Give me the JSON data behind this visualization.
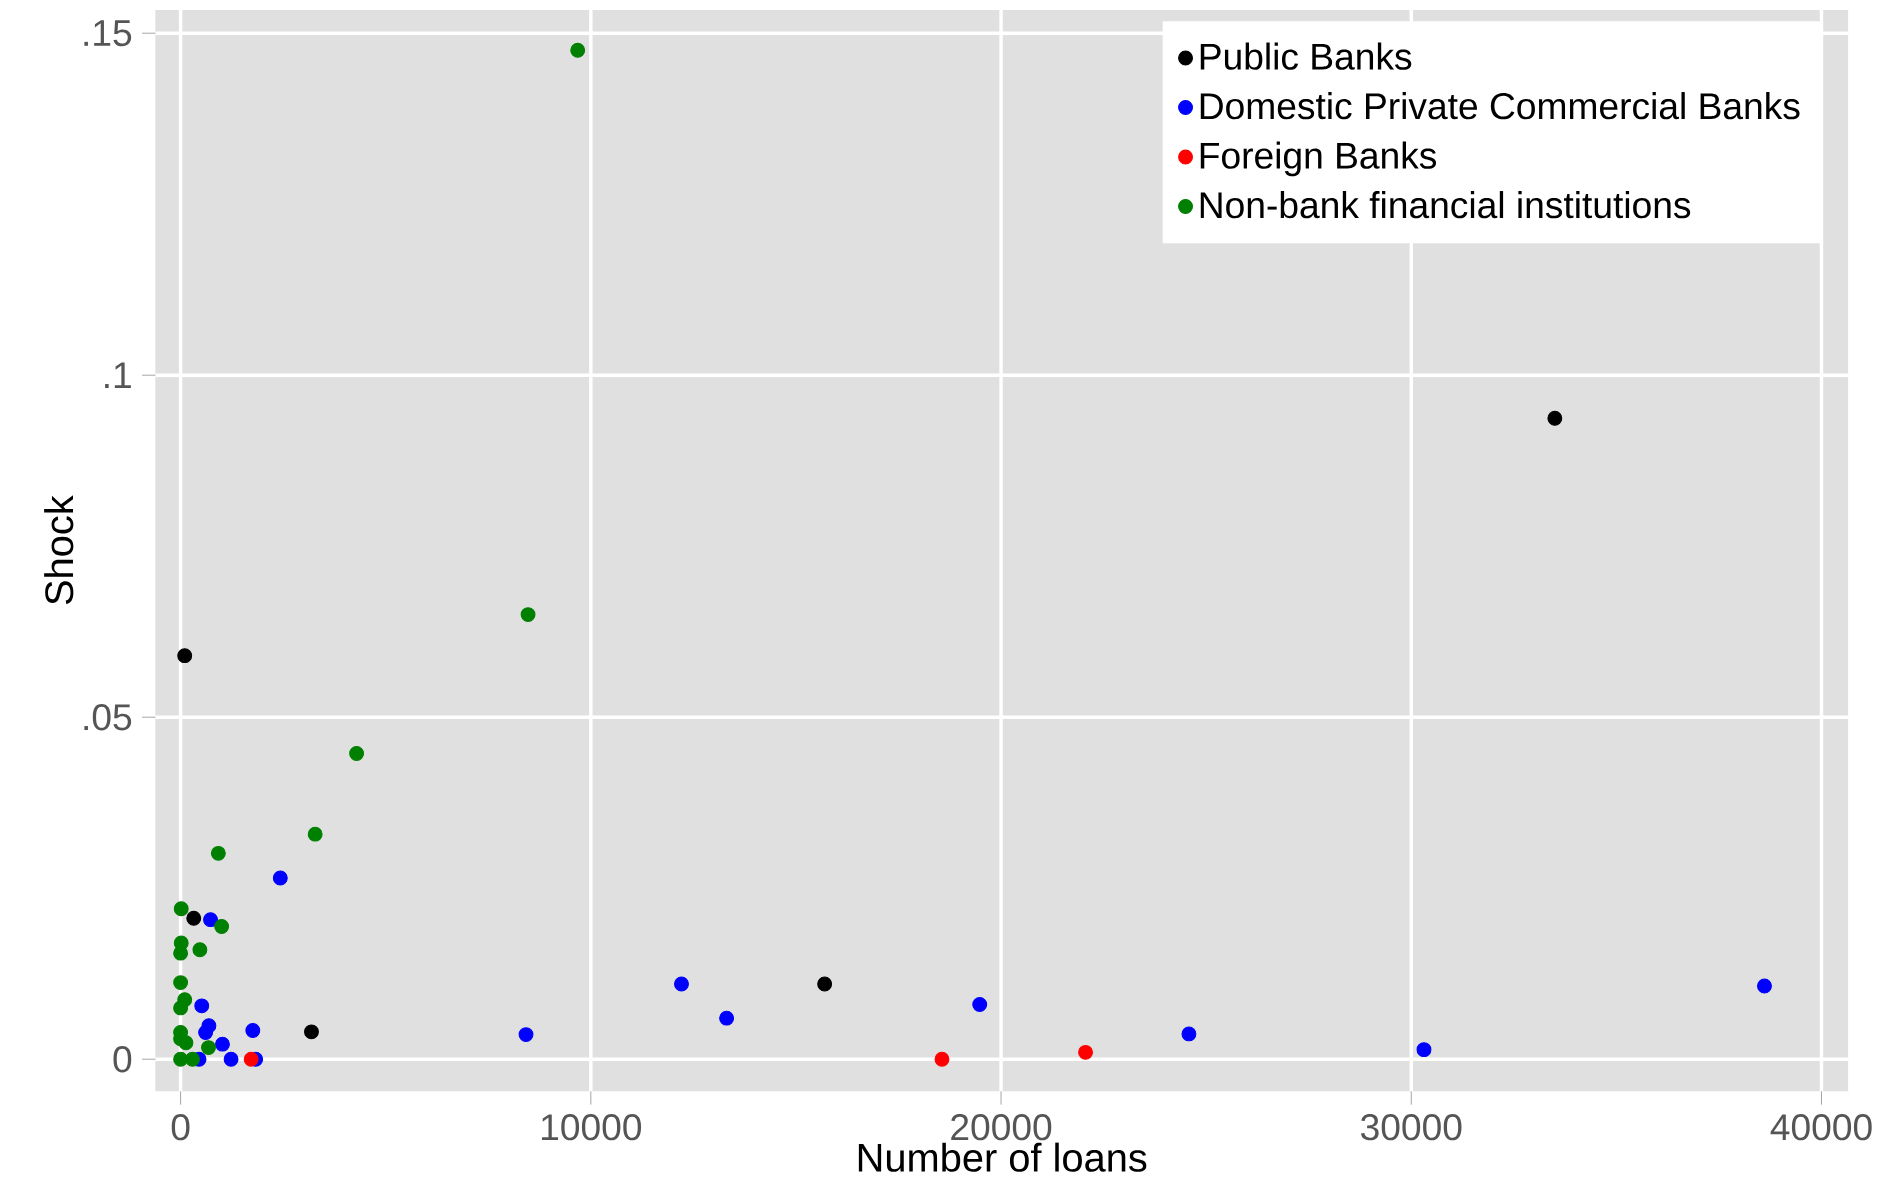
{
  "chart_data": {
    "type": "scatter",
    "xlabel": "Number of loans",
    "ylabel": "Shock",
    "xlim": [
      -616,
      40650
    ],
    "ylim": [
      -0.0047,
      0.1534
    ],
    "xticks": [
      0,
      10000,
      20000,
      30000,
      40000
    ],
    "yticks": [
      0,
      {
        "value": 0.05,
        "label": ".05"
      },
      {
        "value": 0.1,
        "label": ".1"
      },
      {
        "value": 0.15,
        "label": ".15"
      }
    ],
    "grid": true,
    "legend": "top right",
    "marker": "circle",
    "series": [
      {
        "name": "Public Banks",
        "color": "#000000",
        "x": [
          33500,
          100,
          320,
          3190,
          15700
        ],
        "values": [
          0.0937,
          0.059,
          0.0206,
          0.004,
          0.011
        ]
      },
      {
        "name": "Domestic Private Commercial Banks",
        "color": "#0000ff",
        "x": [
          2430,
          730,
          515,
          690,
          610,
          1760,
          1020,
          1230,
          1830,
          450,
          8420,
          12210,
          13310,
          19480,
          24580,
          30310,
          38610
        ],
        "values": [
          0.0265,
          0.0204,
          0.0078,
          0.0049,
          0.0039,
          0.0042,
          0.0022,
          0,
          0,
          0,
          0.0036,
          0.011,
          0.006,
          0.008,
          0.0037,
          0.0014,
          0.0107
        ]
      },
      {
        "name": "Foreign Banks",
        "color": "#ff0000",
        "x": [
          1720,
          18560,
          22060
        ],
        "values": [
          0,
          0,
          0.001
        ]
      },
      {
        "name": "Non-bank financial institutions",
        "color": "#008000",
        "x": [
          9680,
          8470,
          4290,
          3280,
          920,
          1000,
          15,
          470,
          15,
          0,
          0,
          100,
          0,
          0,
          680,
          0,
          0,
          290,
          130
        ],
        "values": [
          0.1475,
          0.065,
          0.0447,
          0.0329,
          0.0301,
          0.0194,
          0.022,
          0.016,
          0.017,
          0.0155,
          0.0112,
          0.0087,
          0.0075,
          0.0039,
          0.0017,
          0.003,
          0,
          0,
          0.0024
        ]
      }
    ]
  }
}
